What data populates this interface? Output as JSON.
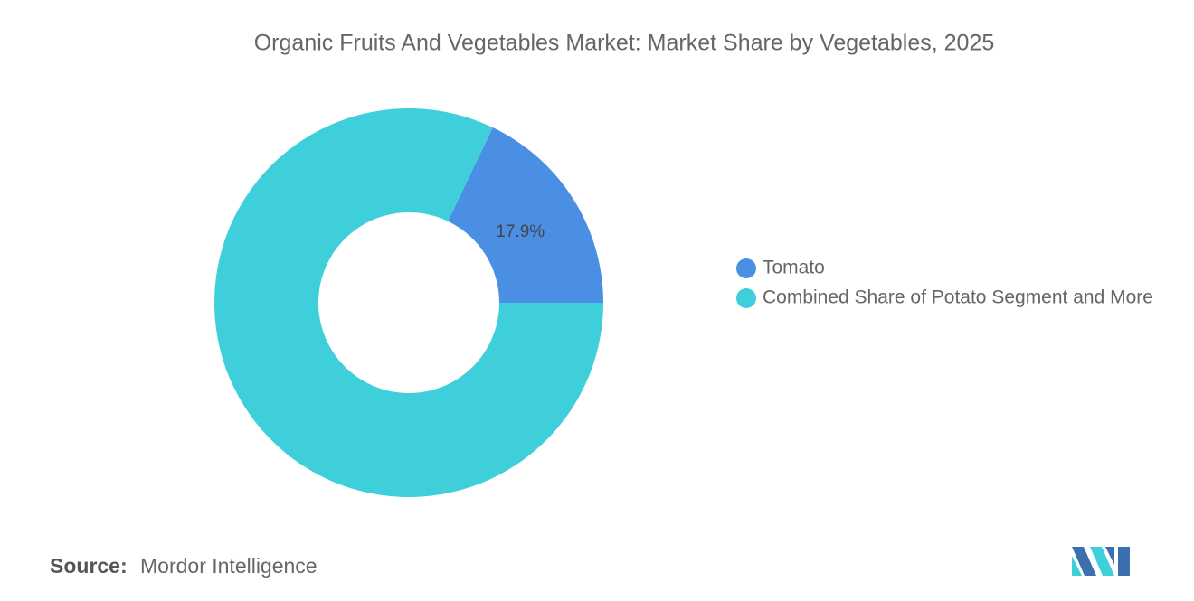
{
  "chart_data": {
    "type": "donut",
    "title": "Organic Fruits And Vegetables Market: Market Share by Vegetables, 2025",
    "categories": [
      "Tomato",
      "Combined Share of Potato Segment and More"
    ],
    "values": [
      17.9,
      82.1
    ],
    "value_labels": [
      "17.9%",
      null
    ],
    "colors": [
      "#4a8fe3",
      "#3ecfdb"
    ],
    "legend": "right",
    "source_label": "Source:",
    "source": "Mordor Intelligence"
  }
}
